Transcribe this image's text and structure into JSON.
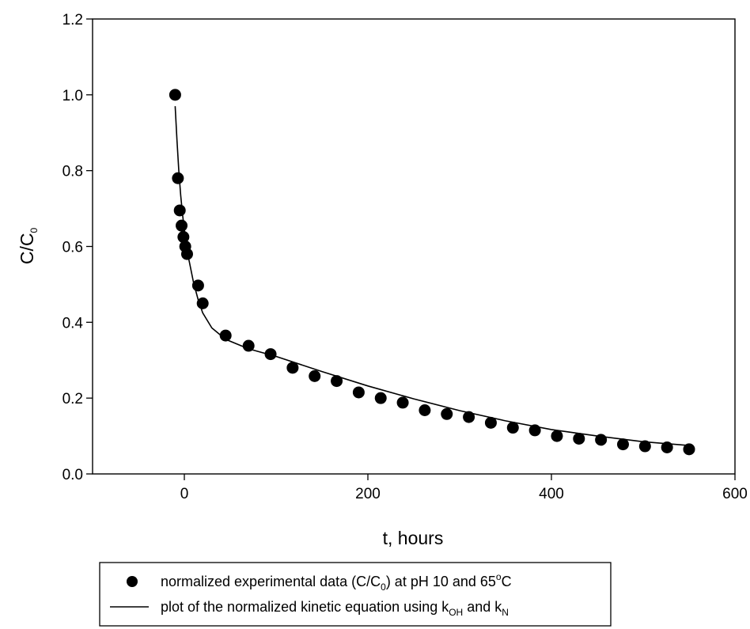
{
  "chart_data": {
    "type": "scatter",
    "xlabel": "t, hours",
    "ylabel": {
      "base": "C/C",
      "sub": "0"
    },
    "xlim": [
      -100,
      600
    ],
    "ylim": [
      0.0,
      1.2
    ],
    "x_ticks": [
      0,
      200,
      400,
      600
    ],
    "x_tick_labels": [
      "0",
      "200",
      "400",
      "600"
    ],
    "y_ticks": [
      0.0,
      0.2,
      0.4,
      0.6,
      0.8,
      1.0,
      1.2
    ],
    "y_tick_labels": [
      "0.0",
      "0.2",
      "0.4",
      "0.6",
      "0.8",
      "1.0",
      "1.2"
    ],
    "grid": false,
    "legend_position": "bottom",
    "legend": [
      {
        "marker": "circle",
        "parts": [
          {
            "t": "normalized experimental data (C/C"
          },
          {
            "t": "0",
            "sub": true
          },
          {
            "t": ") at pH 10 and 65"
          },
          {
            "t": "o",
            "sup": true
          },
          {
            "t": "C"
          }
        ]
      },
      {
        "marker": "line",
        "parts": [
          {
            "t": "plot of the normalized kinetic equation using k"
          },
          {
            "t": "OH",
            "sub": true
          },
          {
            "t": " and k"
          },
          {
            "t": "N",
            "sub": true
          }
        ]
      }
    ],
    "series": [
      {
        "kind": "points",
        "color": "#000000",
        "x": [
          -10,
          -7,
          -5,
          -3,
          -1,
          1,
          3,
          15,
          20,
          45,
          70,
          94,
          118,
          142,
          166,
          190,
          214,
          238,
          262,
          286,
          310,
          334,
          358,
          382,
          406,
          430,
          454,
          478,
          502,
          526,
          550
        ],
        "y": [
          1.0,
          0.78,
          0.695,
          0.655,
          0.625,
          0.6,
          0.58,
          0.497,
          0.45,
          0.365,
          0.338,
          0.316,
          0.28,
          0.258,
          0.245,
          0.215,
          0.2,
          0.188,
          0.168,
          0.158,
          0.15,
          0.135,
          0.122,
          0.115,
          0.1,
          0.093,
          0.09,
          0.078,
          0.073,
          0.07,
          0.065
        ]
      },
      {
        "kind": "line",
        "color": "#000000",
        "x": [
          -10,
          -8,
          -6,
          -4,
          -2,
          0,
          2,
          5,
          10,
          15,
          20,
          30,
          45,
          70,
          100,
          150,
          200,
          250,
          300,
          350,
          400,
          450,
          500,
          550
        ],
        "y": [
          0.97,
          0.88,
          0.8,
          0.735,
          0.685,
          0.645,
          0.61,
          0.565,
          0.505,
          0.46,
          0.425,
          0.385,
          0.355,
          0.33,
          0.31,
          0.27,
          0.232,
          0.198,
          0.167,
          0.14,
          0.117,
          0.1,
          0.085,
          0.075
        ]
      }
    ]
  }
}
